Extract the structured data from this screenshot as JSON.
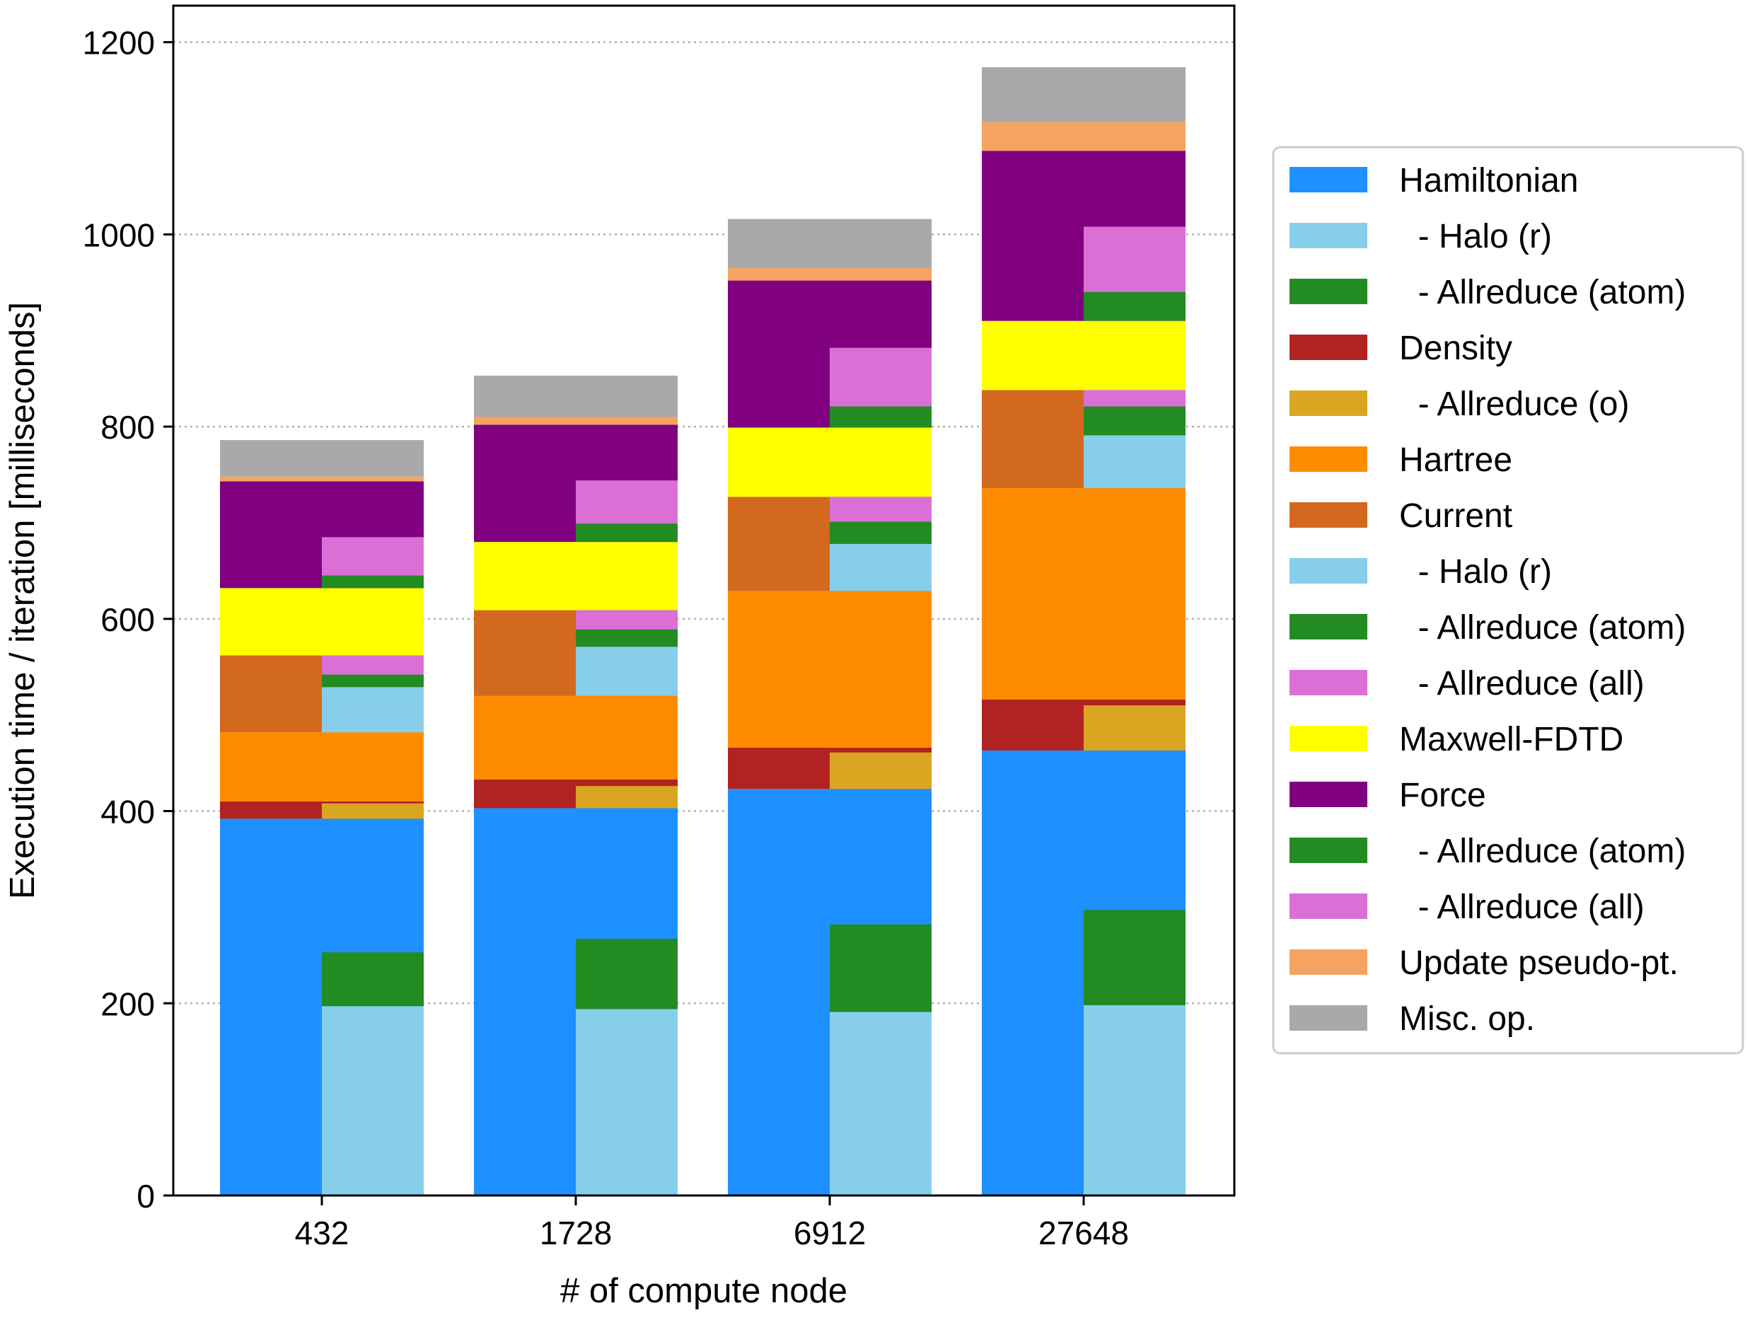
{
  "chart_data": {
    "type": "bar",
    "subtype": "stacked-grouped",
    "xlabel": "# of compute node",
    "ylabel": "Execution time / iteration [milliseconds]",
    "ylim": [
      0,
      1200
    ],
    "yticks": [
      0,
      200,
      400,
      600,
      800,
      1000,
      1200
    ],
    "grid": "horizontal dotted",
    "legend_position": "right",
    "categories": [
      "432",
      "1728",
      "6912",
      "27648"
    ],
    "legend": [
      {
        "label": "Hamiltonian",
        "color": "#1e90ff"
      },
      {
        "label": "  - Halo (r)",
        "color": "#87ceeb"
      },
      {
        "label": "  - Allreduce (atom)",
        "color": "#228b22"
      },
      {
        "label": "Density",
        "color": "#b22222"
      },
      {
        "label": "  - Allreduce (o)",
        "color": "#daa520"
      },
      {
        "label": "Hartree",
        "color": "#ff8c00"
      },
      {
        "label": "Current",
        "color": "#d2691e"
      },
      {
        "label": "  - Halo (r)",
        "color": "#87ceeb"
      },
      {
        "label": "  - Allreduce (atom)",
        "color": "#228b22"
      },
      {
        "label": "  - Allreduce (all)",
        "color": "#da70d6"
      },
      {
        "label": "Maxwell-FDTD",
        "color": "#ffff00"
      },
      {
        "label": "Force",
        "color": "#800080"
      },
      {
        "label": "  - Allreduce (atom)",
        "color": "#228b22"
      },
      {
        "label": "  - Allreduce (all)",
        "color": "#da70d6"
      },
      {
        "label": "Update pseudo-pt.",
        "color": "#f4a460"
      },
      {
        "label": "Misc. op.",
        "color": "#a9a9a9"
      }
    ],
    "series_main": [
      {
        "name": "Hamiltonian",
        "color": "#1e90ff",
        "values": [
          392,
          403,
          423,
          463
        ]
      },
      {
        "name": "Density",
        "color": "#b22222",
        "values": [
          18,
          30,
          43,
          53
        ]
      },
      {
        "name": "Hartree",
        "color": "#ff8c00",
        "values": [
          72,
          87,
          163,
          220
        ]
      },
      {
        "name": "Current",
        "color": "#d2691e",
        "values": [
          80,
          89,
          98,
          102
        ]
      },
      {
        "name": "Maxwell-FDTD",
        "color": "#ffff00",
        "values": [
          70,
          71,
          72,
          72
        ]
      },
      {
        "name": "Force",
        "color": "#800080",
        "values": [
          111,
          122,
          153,
          177
        ]
      },
      {
        "name": "Update pseudo-pt.",
        "color": "#f4a460",
        "values": [
          5,
          8,
          13,
          30
        ]
      },
      {
        "name": "Misc. op.",
        "color": "#a9a9a9",
        "values": [
          38,
          43,
          51,
          57
        ]
      }
    ],
    "series_breakdown": [
      {
        "name": "Hamiltonian - Halo (r)",
        "color": "#87ceeb",
        "base": [
          0,
          0,
          0,
          0
        ],
        "values": [
          197,
          194,
          191,
          198
        ]
      },
      {
        "name": "Hamiltonian - Allreduce (atom)",
        "color": "#228b22",
        "base": [
          197,
          194,
          191,
          198
        ],
        "values": [
          56,
          73,
          91,
          99
        ]
      },
      {
        "name": "Density - Allreduce (o)",
        "color": "#daa520",
        "base": [
          392,
          403,
          423,
          463
        ],
        "values": [
          16,
          23,
          38,
          47
        ]
      },
      {
        "name": "Current - Halo (r)",
        "color": "#87ceeb",
        "base": [
          482,
          520,
          629,
          736
        ],
        "values": [
          47,
          51,
          49,
          55
        ]
      },
      {
        "name": "Current - Allreduce (atom)",
        "color": "#228b22",
        "base": [
          529,
          571,
          678,
          791
        ],
        "values": [
          13,
          18,
          23,
          30
        ]
      },
      {
        "name": "Current - Allreduce (all)",
        "color": "#da70d6",
        "base": [
          542,
          589,
          701,
          821
        ],
        "values": [
          20,
          20,
          26,
          17
        ]
      },
      {
        "name": "Force - Allreduce (atom)",
        "color": "#228b22",
        "base": [
          632,
          680,
          799,
          910
        ],
        "values": [
          13,
          19,
          22,
          30
        ]
      },
      {
        "name": "Force - Allreduce (all)",
        "color": "#da70d6",
        "base": [
          645,
          699,
          821,
          940
        ],
        "values": [
          40,
          45,
          61,
          68
        ]
      }
    ]
  }
}
